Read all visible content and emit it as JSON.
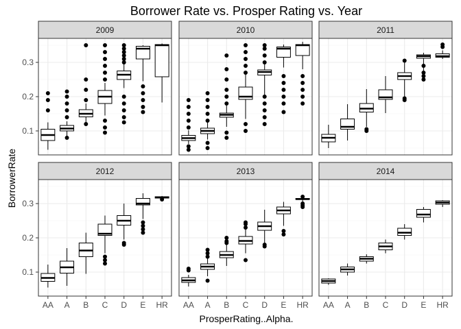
{
  "chart_data": {
    "type": "boxplot",
    "title": "Borrower Rate vs. Prosper Rating vs. Year",
    "xlabel": "ProsperRating..Alpha.",
    "ylabel": "BorrowerRate",
    "categories": [
      "AA",
      "A",
      "B",
      "C",
      "D",
      "E",
      "HR"
    ],
    "y_ticks": [
      0.1,
      0.2,
      0.3
    ],
    "ylim": [
      0.03,
      0.37
    ],
    "grid": true,
    "facets": [
      {
        "label": "2009",
        "boxes": [
          {
            "min": 0.045,
            "q1": 0.072,
            "median": 0.088,
            "q3": 0.105,
            "max": 0.125,
            "outliers": [
              0.16,
              0.19,
              0.21
            ]
          },
          {
            "min": 0.083,
            "q1": 0.1,
            "median": 0.107,
            "q3": 0.116,
            "max": 0.128,
            "outliers": [
              0.08,
              0.14,
              0.16,
              0.18,
              0.2,
              0.215
            ]
          },
          {
            "min": 0.12,
            "q1": 0.141,
            "median": 0.15,
            "q3": 0.162,
            "max": 0.18,
            "outliers": [
              0.12,
              0.19,
              0.22,
              0.25,
              0.35
            ]
          },
          {
            "min": 0.145,
            "q1": 0.18,
            "median": 0.2,
            "q3": 0.218,
            "max": 0.24,
            "outliers": [
              0.095,
              0.11,
              0.13,
              0.25,
              0.27,
              0.29,
              0.31,
              0.33,
              0.35
            ]
          },
          {
            "min": 0.225,
            "q1": 0.25,
            "median": 0.264,
            "q3": 0.275,
            "max": 0.3,
            "outliers": [
              0.125,
              0.14,
              0.16,
              0.18,
              0.2,
              0.3,
              0.31,
              0.32,
              0.33,
              0.34,
              0.35
            ]
          },
          {
            "min": 0.245,
            "q1": 0.31,
            "median": 0.34,
            "q3": 0.347,
            "max": 0.35,
            "outliers": [
              0.155,
              0.17,
              0.19,
              0.21,
              0.23
            ]
          },
          {
            "min": 0.183,
            "q1": 0.258,
            "median": 0.35,
            "q3": 0.352,
            "max": 0.355,
            "outliers": []
          }
        ]
      },
      {
        "label": "2010",
        "boxes": [
          {
            "min": 0.062,
            "q1": 0.072,
            "median": 0.079,
            "q3": 0.087,
            "max": 0.102,
            "outliers": [
              0.045,
              0.055,
              0.11,
              0.13,
              0.15,
              0.17,
              0.19
            ]
          },
          {
            "min": 0.075,
            "q1": 0.092,
            "median": 0.1,
            "q3": 0.108,
            "max": 0.128,
            "outliers": [
              0.05,
              0.065,
              0.13,
              0.15,
              0.17,
              0.19,
              0.21
            ]
          },
          {
            "min": 0.112,
            "q1": 0.14,
            "median": 0.147,
            "q3": 0.152,
            "max": 0.175,
            "outliers": [
              0.08,
              0.095,
              0.18,
              0.2,
              0.22,
              0.25,
              0.28,
              0.32
            ]
          },
          {
            "min": 0.135,
            "q1": 0.192,
            "median": 0.2,
            "q3": 0.228,
            "max": 0.265,
            "outliers": [
              0.1,
              0.12,
              0.27,
              0.29,
              0.31,
              0.33,
              0.35
            ]
          },
          {
            "min": 0.2,
            "q1": 0.263,
            "median": 0.272,
            "q3": 0.278,
            "max": 0.298,
            "outliers": [
              0.12,
              0.14,
              0.16,
              0.18,
              0.2,
              0.3,
              0.32,
              0.34,
              0.35
            ]
          },
          {
            "min": 0.285,
            "q1": 0.315,
            "median": 0.34,
            "q3": 0.345,
            "max": 0.352,
            "outliers": [
              0.155,
              0.18,
              0.2,
              0.22,
              0.24,
              0.26
            ]
          },
          {
            "min": 0.28,
            "q1": 0.32,
            "median": 0.35,
            "q3": 0.352,
            "max": 0.36,
            "outliers": [
              0.18,
              0.2,
              0.22,
              0.24,
              0.26
            ]
          }
        ]
      },
      {
        "label": "2011",
        "boxes": [
          {
            "min": 0.05,
            "q1": 0.068,
            "median": 0.08,
            "q3": 0.09,
            "max": 0.118,
            "outliers": []
          },
          {
            "min": 0.072,
            "q1": 0.105,
            "median": 0.112,
            "q3": 0.135,
            "max": 0.178,
            "outliers": []
          },
          {
            "min": 0.112,
            "q1": 0.155,
            "median": 0.165,
            "q3": 0.18,
            "max": 0.222,
            "outliers": [
              0.1,
              0.105
            ]
          },
          {
            "min": 0.152,
            "q1": 0.192,
            "median": 0.198,
            "q3": 0.22,
            "max": 0.26,
            "outliers": []
          },
          {
            "min": 0.2,
            "q1": 0.25,
            "median": 0.26,
            "q3": 0.27,
            "max": 0.302,
            "outliers": [
              0.19,
              0.195,
              0.305
            ]
          },
          {
            "min": 0.265,
            "q1": 0.312,
            "median": 0.318,
            "q3": 0.322,
            "max": 0.328,
            "outliers": [
              0.25,
              0.26,
              0.27,
              0.29
            ]
          },
          {
            "min": 0.31,
            "q1": 0.315,
            "median": 0.318,
            "q3": 0.325,
            "max": 0.335,
            "outliers": [
              0.345,
              0.352
            ]
          }
        ]
      },
      {
        "label": "2012",
        "boxes": [
          {
            "min": 0.055,
            "q1": 0.073,
            "median": 0.083,
            "q3": 0.096,
            "max": 0.122,
            "outliers": []
          },
          {
            "min": 0.06,
            "q1": 0.097,
            "median": 0.114,
            "q3": 0.132,
            "max": 0.17,
            "outliers": []
          },
          {
            "min": 0.095,
            "q1": 0.145,
            "median": 0.163,
            "q3": 0.185,
            "max": 0.215,
            "outliers": []
          },
          {
            "min": 0.155,
            "q1": 0.207,
            "median": 0.212,
            "q3": 0.24,
            "max": 0.265,
            "outliers": [
              0.125,
              0.135,
              0.145
            ]
          },
          {
            "min": 0.195,
            "q1": 0.237,
            "median": 0.25,
            "q3": 0.265,
            "max": 0.3,
            "outliers": [
              0.18,
              0.185
            ]
          },
          {
            "min": 0.255,
            "q1": 0.296,
            "median": 0.3,
            "q3": 0.315,
            "max": 0.33,
            "outliers": [
              0.215,
              0.225,
              0.235,
              0.245
            ]
          },
          {
            "min": 0.312,
            "q1": 0.316,
            "median": 0.318,
            "q3": 0.32,
            "max": 0.322,
            "outliers": [
              0.312
            ]
          }
        ]
      },
      {
        "label": "2013",
        "boxes": [
          {
            "min": 0.058,
            "q1": 0.07,
            "median": 0.076,
            "q3": 0.084,
            "max": 0.092,
            "outliers": [
              0.105,
              0.11
            ]
          },
          {
            "min": 0.088,
            "q1": 0.108,
            "median": 0.116,
            "q3": 0.124,
            "max": 0.14,
            "outliers": [
              0.075,
              0.145,
              0.155,
              0.165
            ]
          },
          {
            "min": 0.118,
            "q1": 0.142,
            "median": 0.15,
            "q3": 0.16,
            "max": 0.18,
            "outliers": [
              0.185,
              0.19,
              0.2
            ]
          },
          {
            "min": 0.155,
            "q1": 0.182,
            "median": 0.191,
            "q3": 0.204,
            "max": 0.225,
            "outliers": [
              0.135,
              0.23,
              0.24,
              0.245
            ]
          },
          {
            "min": 0.185,
            "q1": 0.222,
            "median": 0.234,
            "q3": 0.246,
            "max": 0.282,
            "outliers": [
              0.175,
              0.18
            ]
          },
          {
            "min": 0.235,
            "q1": 0.27,
            "median": 0.28,
            "q3": 0.29,
            "max": 0.305,
            "outliers": [
              0.21,
              0.22
            ]
          },
          {
            "min": 0.3,
            "q1": 0.312,
            "median": 0.313,
            "q3": 0.315,
            "max": 0.318,
            "outliers": [
              0.29,
              0.295,
              0.3,
              0.32
            ]
          }
        ]
      },
      {
        "label": "2014",
        "boxes": [
          {
            "min": 0.063,
            "q1": 0.068,
            "median": 0.074,
            "q3": 0.08,
            "max": 0.082,
            "outliers": []
          },
          {
            "min": 0.09,
            "q1": 0.1,
            "median": 0.108,
            "q3": 0.115,
            "max": 0.125,
            "outliers": []
          },
          {
            "min": 0.125,
            "q1": 0.132,
            "median": 0.139,
            "q3": 0.145,
            "max": 0.152,
            "outliers": []
          },
          {
            "min": 0.155,
            "q1": 0.165,
            "median": 0.175,
            "q3": 0.185,
            "max": 0.195,
            "outliers": []
          },
          {
            "min": 0.195,
            "q1": 0.207,
            "median": 0.215,
            "q3": 0.228,
            "max": 0.24,
            "outliers": []
          },
          {
            "min": 0.245,
            "q1": 0.26,
            "median": 0.268,
            "q3": 0.283,
            "max": 0.29,
            "outliers": []
          },
          {
            "min": 0.29,
            "q1": 0.298,
            "median": 0.303,
            "q3": 0.308,
            "max": 0.31,
            "outliers": []
          }
        ]
      }
    ]
  }
}
